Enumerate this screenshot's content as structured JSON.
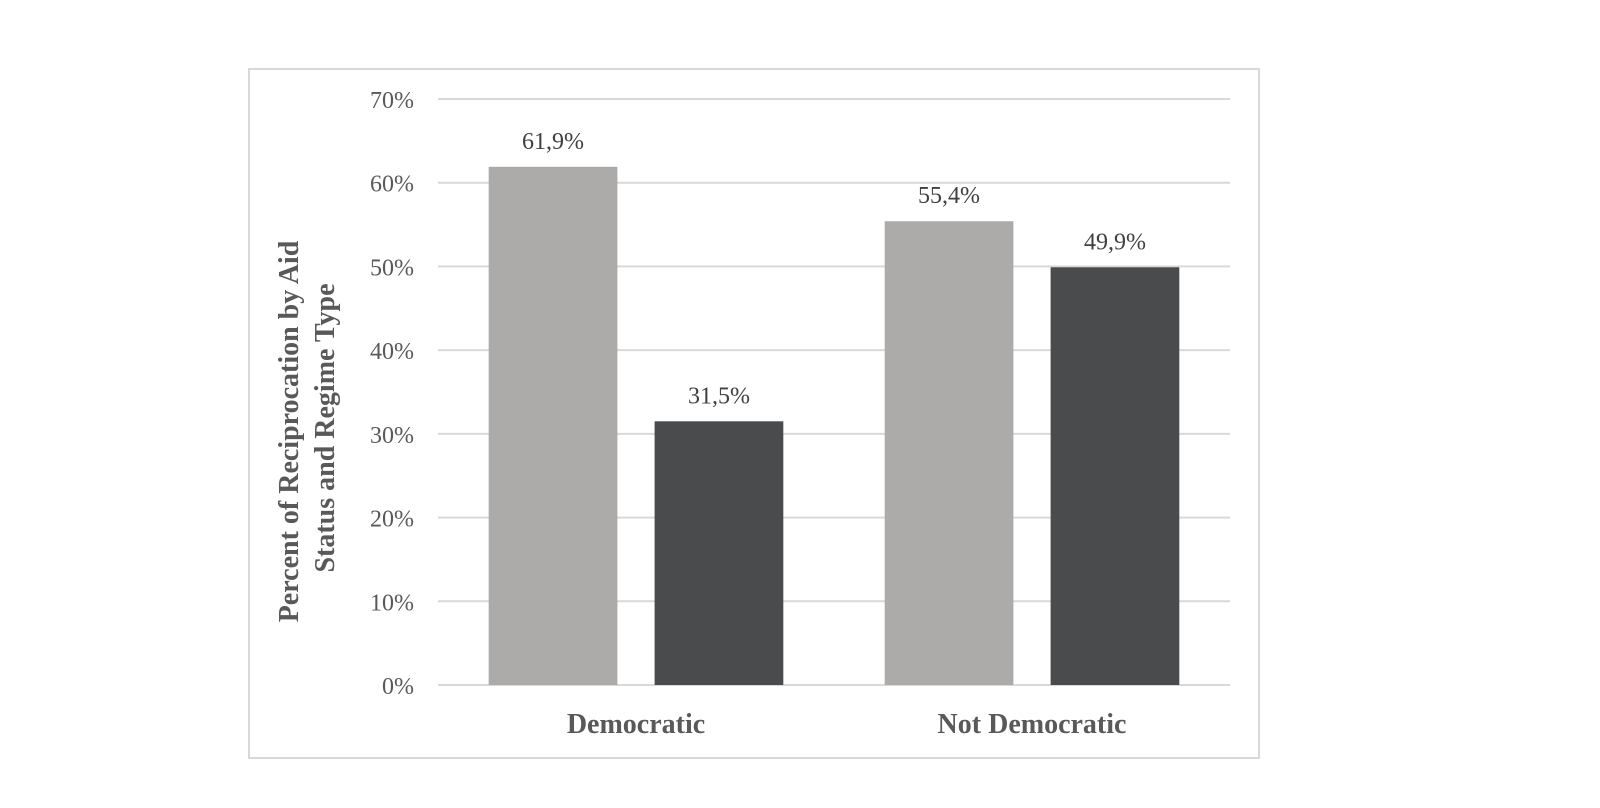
{
  "chart_data": {
    "type": "bar",
    "categories": [
      "Democratic",
      "Not Democratic"
    ],
    "series": [
      {
        "values": [
          61.9,
          55.4
        ],
        "color": "#adabaa"
      },
      {
        "values": [
          31.5,
          49.9
        ],
        "color": "#4a4b4c"
      }
    ],
    "data_labels": [
      [
        "61,9%",
        "55,4%"
      ],
      [
        "31,5%",
        "49,9%"
      ]
    ],
    "ylabel_lines": [
      "Percent of Reciprocation by Aid",
      "Status and Regime Type"
    ],
    "xlabel": "",
    "title": "",
    "ylim": [
      0,
      70
    ],
    "yticks": [
      0,
      10,
      20,
      30,
      40,
      50,
      60,
      70
    ],
    "ytick_labels": [
      "0%",
      "10%",
      "20%",
      "30%",
      "40%",
      "50%",
      "60%",
      "70%"
    ],
    "grid": true,
    "legend": "none"
  }
}
